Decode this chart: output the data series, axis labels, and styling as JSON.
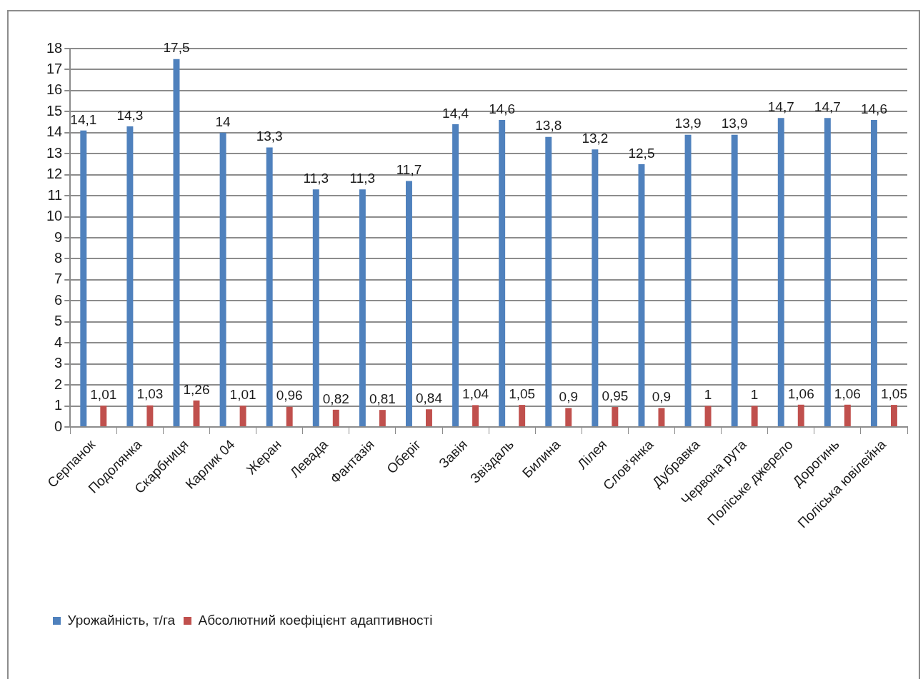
{
  "chart_data": {
    "type": "bar",
    "categories": [
      "Серпанок",
      "Подолянка",
      "Скарбниця",
      "Карлик 04",
      "Жеран",
      "Левада",
      "Фантазія",
      "Оберіг",
      "Завія",
      "Звіздаль",
      "Билина",
      "Лілея",
      "Слов’янка",
      "Дубравка",
      "Червона рута",
      "Поліське джерело",
      "Дорогинь",
      "Поліська ювілейна"
    ],
    "series": [
      {
        "name": "Урожайність, т/га",
        "color": "#4f81bd",
        "values": [
          14.1,
          14.3,
          17.5,
          14,
          13.3,
          11.3,
          11.3,
          11.7,
          14.4,
          14.6,
          13.8,
          13.2,
          12.5,
          13.9,
          13.9,
          14.7,
          14.7,
          14.6
        ],
        "value_labels": [
          "14,1",
          "14,3",
          "17,5",
          "14",
          "13,3",
          "11,3",
          "11,3",
          "11,7",
          "14,4",
          "14,6",
          "13,8",
          "13,2",
          "12,5",
          "13,9",
          "13,9",
          "14,7",
          "14,7",
          "14,6"
        ]
      },
      {
        "name": "Абсолютний коефіцієнт адаптивності",
        "color": "#c0504d",
        "values": [
          1.01,
          1.03,
          1.26,
          1.01,
          0.96,
          0.82,
          0.81,
          0.84,
          1.04,
          1.05,
          0.9,
          0.95,
          0.9,
          1,
          1,
          1.06,
          1.06,
          1.05
        ],
        "value_labels": [
          "1,01",
          "1,03",
          "1,26",
          "1,01",
          "0,96",
          "0,82",
          "0,81",
          "0,84",
          "1,04",
          "1,05",
          "0,9",
          "0,95",
          "0,9",
          "1",
          "1",
          "1,06",
          "1,06",
          "1,05"
        ]
      }
    ],
    "ylim": [
      0,
      18
    ],
    "yticks": [
      0,
      1,
      2,
      3,
      4,
      5,
      6,
      7,
      8,
      9,
      10,
      11,
      12,
      13,
      14,
      15,
      16,
      17,
      18
    ],
    "grid": "y",
    "legend": "bottom left"
  }
}
